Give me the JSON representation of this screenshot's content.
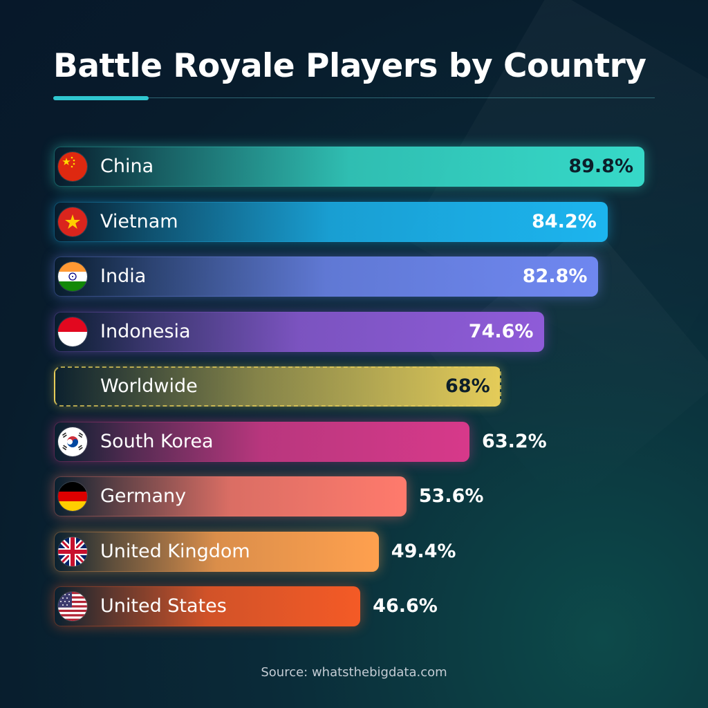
{
  "title": "Battle Royale Players by Country",
  "source": "Source: whatsthebigdata.com",
  "chart_data": {
    "type": "bar",
    "orientation": "horizontal",
    "title": "Battle Royale Players by Country",
    "categories": [
      "China",
      "Vietnam",
      "India",
      "Indonesia",
      "Worldwide",
      "South Korea",
      "Germany",
      "United Kingdom",
      "United States"
    ],
    "values": [
      89.8,
      84.2,
      82.8,
      74.6,
      68,
      63.2,
      53.6,
      49.4,
      46.6
    ],
    "value_labels": [
      "89.8%",
      "84.2%",
      "82.8%",
      "74.6%",
      "68%",
      "63.2%",
      "53.6%",
      "49.4%",
      "46.6%"
    ],
    "unit": "%",
    "grid": false,
    "legend": "none",
    "bars": [
      {
        "label": "China",
        "value": 89.8,
        "value_label": "89.8%",
        "flag": "china-flag-icon",
        "color": "#36d9c8",
        "value_inside": true
      },
      {
        "label": "Vietnam",
        "value": 84.2,
        "value_label": "84.2%",
        "flag": "vietnam-flag-icon",
        "color": "#1cb4ee",
        "value_inside": true
      },
      {
        "label": "India",
        "value": 82.8,
        "value_label": "82.8%",
        "flag": "india-flag-icon",
        "color": "#6f87f0",
        "value_inside": true
      },
      {
        "label": "Indonesia",
        "value": 74.6,
        "value_label": "74.6%",
        "flag": "indonesia-flag-icon",
        "color": "#8f5bd8",
        "value_inside": true
      },
      {
        "label": "Worldwide",
        "value": 68,
        "value_label": "68%",
        "flag": "",
        "color": "#e9cf5a",
        "value_inside": true,
        "dashed": true
      },
      {
        "label": "South Korea",
        "value": 63.2,
        "value_label": "63.2%",
        "flag": "south-korea-flag-icon",
        "color": "#d7398a",
        "value_inside": false
      },
      {
        "label": "Germany",
        "value": 53.6,
        "value_label": "53.6%",
        "flag": "germany-flag-icon",
        "color": "#ff7a6c",
        "value_inside": false
      },
      {
        "label": "United Kingdom",
        "value": 49.4,
        "value_label": "49.4%",
        "flag": "united-kingdom-flag-icon",
        "color": "#ffa04e",
        "value_inside": false
      },
      {
        "label": "United States",
        "value": 46.6,
        "value_label": "46.6%",
        "flag": "united-states-flag-icon",
        "color": "#f45a26",
        "value_inside": false
      }
    ]
  }
}
